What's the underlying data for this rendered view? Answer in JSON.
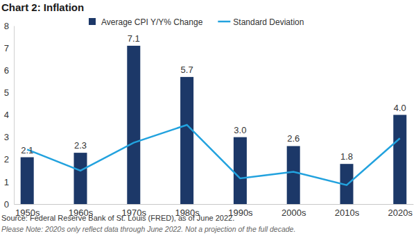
{
  "chart_data": {
    "type": "bar",
    "title": "Chart 2: Inflation",
    "categories": [
      "1950s",
      "1960s",
      "1970s",
      "1980s",
      "1990s",
      "2000s",
      "2010s",
      "2020s"
    ],
    "series": [
      {
        "name": "Average CPI Y/Y% Change",
        "type": "bar",
        "color": "#1c3868",
        "values": [
          2.1,
          2.3,
          7.1,
          5.7,
          3.0,
          2.6,
          1.8,
          4.0
        ],
        "value_labels": [
          "2.1",
          "2.3",
          "7.1",
          "5.7",
          "3.0",
          "2.6",
          "1.8",
          "4.0"
        ],
        "data_labels": true
      },
      {
        "name": "Standard Deviation",
        "type": "line",
        "color": "#22a2de",
        "line_style": "solid",
        "values": [
          2.45,
          1.5,
          2.75,
          3.55,
          1.15,
          1.45,
          0.85,
          2.95
        ]
      }
    ],
    "ylim": [
      0,
      8
    ],
    "yticks": [
      0,
      1,
      2,
      3,
      4,
      5,
      6,
      7,
      8
    ],
    "grid": false,
    "legend": "top",
    "annotations": [
      "Source: Federal Reserve Bank of St. Louis (FRED), as of June 2022.",
      "Please Note: 2020s only reflect data through June 2022. Not a projection of the full decade."
    ]
  }
}
